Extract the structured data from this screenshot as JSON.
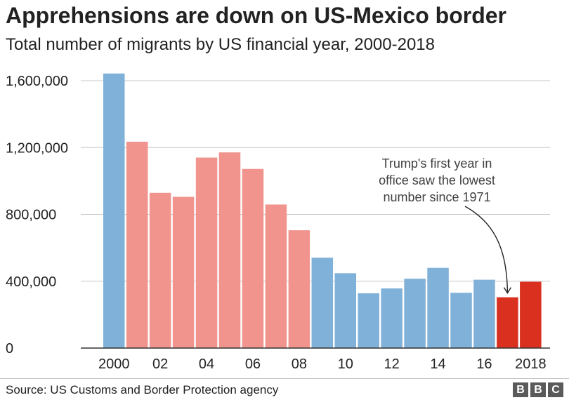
{
  "header": {
    "title": "Apprehensions are down on US-Mexico border",
    "subtitle": "Total number of migrants by US financial year, 2000-2018"
  },
  "footer": {
    "source": "Source: US Customs and Border Protection agency",
    "logo_letters": [
      "B",
      "B",
      "C"
    ]
  },
  "colors": {
    "blue": "#80b1d8",
    "pink": "#f0948d",
    "red": "#d9301f",
    "grid": "#c8c8c8",
    "axis": "#333333"
  },
  "chart_data": {
    "type": "bar",
    "title": "Apprehensions are down on US-Mexico border",
    "subtitle": "Total number of migrants by US financial year, 2000-2018",
    "categories": [
      "2000",
      "2001",
      "2002",
      "2003",
      "2004",
      "2005",
      "2006",
      "2007",
      "2008",
      "2009",
      "2010",
      "2011",
      "2012",
      "2013",
      "2014",
      "2015",
      "2016",
      "2017",
      "2018"
    ],
    "values": [
      1643000,
      1235000,
      929000,
      905000,
      1140000,
      1171000,
      1072000,
      859000,
      705000,
      541000,
      448000,
      328000,
      357000,
      415000,
      480000,
      331000,
      409000,
      304000,
      397000
    ],
    "bar_colors": [
      "blue",
      "pink",
      "pink",
      "pink",
      "pink",
      "pink",
      "pink",
      "pink",
      "pink",
      "blue",
      "blue",
      "blue",
      "blue",
      "blue",
      "blue",
      "blue",
      "blue",
      "red",
      "red"
    ],
    "ylim": [
      0,
      1600000
    ],
    "yticks": [
      0,
      400000,
      800000,
      1200000,
      1600000
    ],
    "ytick_labels": [
      "0",
      "400,000",
      "800,000",
      "1,200,000",
      "1,600,000"
    ],
    "xtick_labels": [
      "2000",
      "",
      "02",
      "",
      "04",
      "",
      "06",
      "",
      "08",
      "",
      "10",
      "",
      "12",
      "",
      "14",
      "",
      "16",
      "",
      "2018"
    ],
    "grid": true,
    "legend": "none",
    "annotation": {
      "lines": [
        "Trump's first year in",
        "office saw the lowest",
        "number since 1971"
      ],
      "target_category": "2017"
    }
  }
}
